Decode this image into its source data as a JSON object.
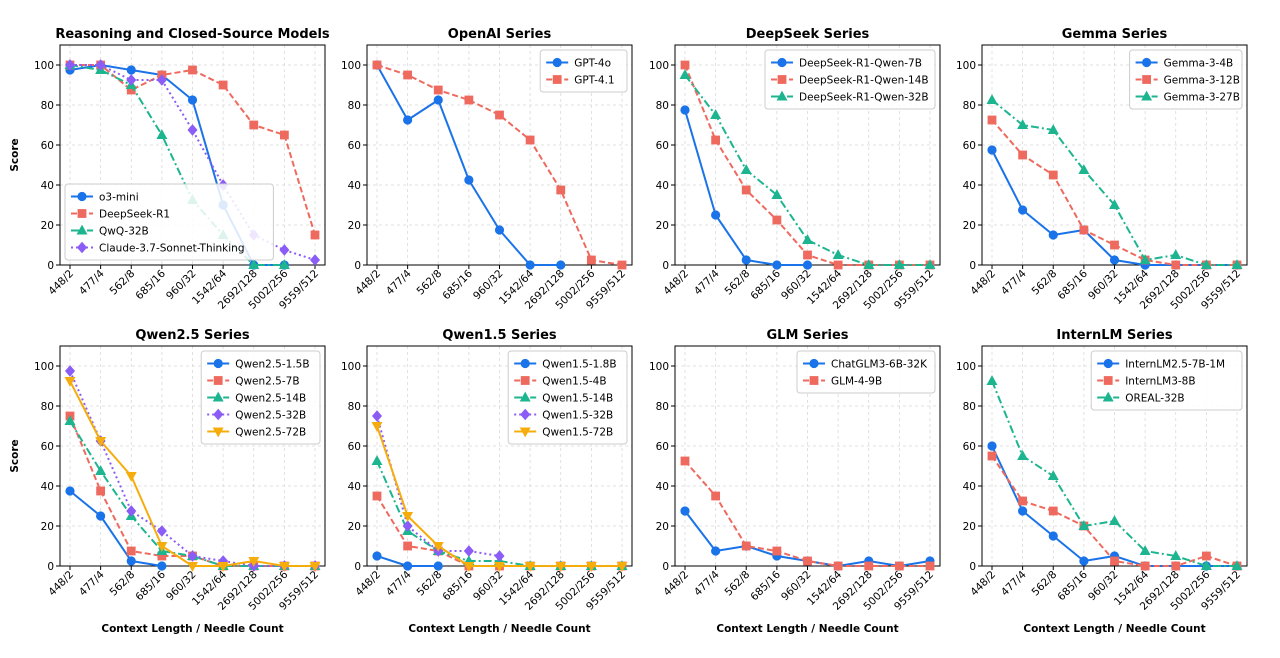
{
  "colors": {
    "blue": "#1a73e8",
    "red": "#ef6a5e",
    "green": "#1db58f",
    "purple": "#8b5cf6",
    "orange": "#f5ad0c",
    "grid": "#d9d9d9"
  },
  "chart_data": [
    {
      "type": "line",
      "title": "Reasoning and Closed-Source Models",
      "ylabel": "Score",
      "xlabel": "",
      "ylim": [
        0,
        110
      ],
      "yticks": [
        0,
        20,
        40,
        60,
        80,
        100
      ],
      "categories": [
        "448/2",
        "477/4",
        "562/8",
        "685/16",
        "960/32",
        "1542/64",
        "2692/128",
        "5002/256",
        "9559/512"
      ],
      "legend_loc": "lower-left",
      "series": [
        {
          "name": "o3-mini",
          "color": "blue",
          "marker": "circle",
          "dash": "solid",
          "values": [
            97.5,
            100,
            97.5,
            95,
            82.5,
            30,
            0,
            0,
            null
          ]
        },
        {
          "name": "DeepSeek-R1",
          "color": "red",
          "marker": "square",
          "dash": "dashed",
          "values": [
            100,
            100,
            87.5,
            95,
            97.5,
            90,
            70,
            65,
            15
          ]
        },
        {
          "name": "QwQ-32B",
          "color": "green",
          "marker": "triangle",
          "dash": "dashdot",
          "values": [
            100,
            97.5,
            90,
            65,
            32.5,
            15,
            0,
            0,
            null
          ]
        },
        {
          "name": "Claude-3.7-Sonnet-Thinking",
          "color": "purple",
          "marker": "diamond",
          "dash": "dotted",
          "values": [
            100,
            100,
            92.5,
            92.5,
            67.5,
            40,
            15,
            7.5,
            2.5
          ]
        }
      ]
    },
    {
      "type": "line",
      "title": "OpenAI Series",
      "ylabel": "",
      "xlabel": "",
      "ylim": [
        0,
        110
      ],
      "yticks": [
        0,
        20,
        40,
        60,
        80,
        100
      ],
      "categories": [
        "448/2",
        "477/4",
        "562/8",
        "685/16",
        "960/32",
        "1542/64",
        "2692/128",
        "5002/256",
        "9559/512"
      ],
      "legend_loc": "upper-right",
      "series": [
        {
          "name": "GPT-4o",
          "color": "blue",
          "marker": "circle",
          "dash": "solid",
          "values": [
            100,
            72.5,
            82.5,
            42.5,
            17.5,
            0,
            0,
            null,
            null
          ]
        },
        {
          "name": "GPT-4.1",
          "color": "red",
          "marker": "square",
          "dash": "dashed",
          "values": [
            100,
            95,
            87.5,
            82.5,
            75,
            62.5,
            37.5,
            2.5,
            0
          ]
        }
      ]
    },
    {
      "type": "line",
      "title": "DeepSeek Series",
      "ylabel": "",
      "xlabel": "",
      "ylim": [
        0,
        110
      ],
      "yticks": [
        0,
        20,
        40,
        60,
        80,
        100
      ],
      "categories": [
        "448/2",
        "477/4",
        "562/8",
        "685/16",
        "960/32",
        "1542/64",
        "2692/128",
        "5002/256",
        "9559/512"
      ],
      "legend_loc": "upper-right",
      "series": [
        {
          "name": "DeepSeek-R1-Qwen-7B",
          "color": "blue",
          "marker": "circle",
          "dash": "solid",
          "values": [
            77.5,
            25,
            2.5,
            0,
            0,
            null,
            null,
            null,
            null
          ]
        },
        {
          "name": "DeepSeek-R1-Qwen-14B",
          "color": "red",
          "marker": "square",
          "dash": "dashed",
          "values": [
            100,
            62.5,
            37.5,
            22.5,
            5,
            0,
            0,
            0,
            0
          ]
        },
        {
          "name": "DeepSeek-R1-Qwen-32B",
          "color": "green",
          "marker": "triangle",
          "dash": "dashdot",
          "values": [
            95,
            75,
            47.5,
            35,
            12.5,
            5,
            0,
            0,
            0
          ]
        }
      ]
    },
    {
      "type": "line",
      "title": "Gemma Series",
      "ylabel": "",
      "xlabel": "",
      "ylim": [
        0,
        110
      ],
      "yticks": [
        0,
        20,
        40,
        60,
        80,
        100
      ],
      "categories": [
        "448/2",
        "477/4",
        "562/8",
        "685/16",
        "960/32",
        "1542/64",
        "2692/128",
        "5002/256",
        "9559/512"
      ],
      "legend_loc": "upper-right",
      "series": [
        {
          "name": "Gemma-3-4B",
          "color": "blue",
          "marker": "circle",
          "dash": "solid",
          "values": [
            57.5,
            27.5,
            15,
            17.5,
            2.5,
            0,
            0,
            0,
            0
          ]
        },
        {
          "name": "Gemma-3-12B",
          "color": "red",
          "marker": "square",
          "dash": "dashed",
          "values": [
            72.5,
            55,
            45,
            17.5,
            10,
            2.5,
            0,
            0,
            0
          ]
        },
        {
          "name": "Gemma-3-27B",
          "color": "green",
          "marker": "triangle",
          "dash": "dashdot",
          "values": [
            82.5,
            70,
            67.5,
            47.5,
            30,
            2.5,
            5,
            0,
            0
          ]
        }
      ]
    },
    {
      "type": "line",
      "title": "Qwen2.5 Series",
      "ylabel": "Score",
      "xlabel": "Context Length / Needle Count",
      "ylim": [
        0,
        110
      ],
      "yticks": [
        0,
        20,
        40,
        60,
        80,
        100
      ],
      "categories": [
        "448/2",
        "477/4",
        "562/8",
        "685/16",
        "960/32",
        "1542/64",
        "2692/128",
        "5002/256",
        "9559/512"
      ],
      "legend_loc": "upper-right",
      "series": [
        {
          "name": "Qwen2.5-1.5B",
          "color": "blue",
          "marker": "circle",
          "dash": "solid",
          "values": [
            37.5,
            25,
            2.5,
            0,
            null,
            null,
            null,
            null,
            null
          ]
        },
        {
          "name": "Qwen2.5-7B",
          "color": "red",
          "marker": "square",
          "dash": "dashed",
          "values": [
            75,
            37.5,
            7.5,
            5,
            5,
            0,
            0,
            0,
            0
          ]
        },
        {
          "name": "Qwen2.5-14B",
          "color": "green",
          "marker": "triangle",
          "dash": "dashdot",
          "values": [
            72.5,
            47.5,
            25,
            7.5,
            5,
            0,
            0,
            0,
            0
          ]
        },
        {
          "name": "Qwen2.5-32B",
          "color": "purple",
          "marker": "diamond",
          "dash": "dotted",
          "values": [
            97.5,
            62.5,
            27.5,
            17.5,
            5,
            2.5,
            0,
            0,
            0
          ]
        },
        {
          "name": "Qwen2.5-72B",
          "color": "orange",
          "marker": "triangle-down",
          "dash": "solid",
          "values": [
            92.5,
            62.5,
            45,
            10,
            0,
            0,
            2.5,
            0,
            0
          ]
        }
      ]
    },
    {
      "type": "line",
      "title": "Qwen1.5 Series",
      "ylabel": "",
      "xlabel": "Context Length / Needle Count",
      "ylim": [
        0,
        110
      ],
      "yticks": [
        0,
        20,
        40,
        60,
        80,
        100
      ],
      "categories": [
        "448/2",
        "477/4",
        "562/8",
        "685/16",
        "960/32",
        "1542/64",
        "2692/128",
        "5002/256",
        "9559/512"
      ],
      "legend_loc": "upper-right",
      "series": [
        {
          "name": "Qwen1.5-1.8B",
          "color": "blue",
          "marker": "circle",
          "dash": "solid",
          "values": [
            5,
            0,
            0,
            null,
            null,
            null,
            null,
            null,
            null
          ]
        },
        {
          "name": "Qwen1.5-4B",
          "color": "red",
          "marker": "square",
          "dash": "dashed",
          "values": [
            35,
            10,
            7.5,
            0,
            0,
            0,
            0,
            0,
            0
          ]
        },
        {
          "name": "Qwen1.5-14B",
          "color": "green",
          "marker": "triangle",
          "dash": "dashdot",
          "values": [
            52.5,
            17.5,
            7.5,
            2.5,
            2.5,
            0,
            0,
            0,
            0
          ]
        },
        {
          "name": "Qwen1.5-32B",
          "color": "purple",
          "marker": "diamond",
          "dash": "dotted",
          "values": [
            75,
            20,
            7.5,
            7.5,
            5,
            null,
            null,
            null,
            null
          ]
        },
        {
          "name": "Qwen1.5-72B",
          "color": "orange",
          "marker": "triangle-down",
          "dash": "solid",
          "values": [
            70,
            25,
            10,
            0,
            0,
            0,
            0,
            0,
            0
          ]
        }
      ]
    },
    {
      "type": "line",
      "title": "GLM Series",
      "ylabel": "",
      "xlabel": "Context Length / Needle Count",
      "ylim": [
        0,
        110
      ],
      "yticks": [
        0,
        20,
        40,
        60,
        80,
        100
      ],
      "categories": [
        "448/2",
        "477/4",
        "562/8",
        "685/16",
        "960/32",
        "1542/64",
        "2692/128",
        "5002/256",
        "9559/512"
      ],
      "legend_loc": "upper-right",
      "series": [
        {
          "name": "ChatGLM3-6B-32K",
          "color": "blue",
          "marker": "circle",
          "dash": "solid",
          "values": [
            27.5,
            7.5,
            10,
            5,
            2.5,
            0,
            2.5,
            0,
            2.5
          ]
        },
        {
          "name": "GLM-4-9B",
          "color": "red",
          "marker": "square",
          "dash": "dashed",
          "values": [
            52.5,
            35,
            10,
            7.5,
            2.5,
            0,
            0,
            0,
            0
          ]
        }
      ]
    },
    {
      "type": "line",
      "title": "InternLM Series",
      "ylabel": "",
      "xlabel": "Context Length / Needle Count",
      "ylim": [
        0,
        110
      ],
      "yticks": [
        0,
        20,
        40,
        60,
        80,
        100
      ],
      "categories": [
        "448/2",
        "477/4",
        "562/8",
        "685/16",
        "960/32",
        "1542/64",
        "2692/128",
        "5002/256",
        "9559/512"
      ],
      "legend_loc": "upper-right",
      "series": [
        {
          "name": "InternLM2.5-7B-1M",
          "color": "blue",
          "marker": "circle",
          "dash": "solid",
          "values": [
            60,
            27.5,
            15,
            2.5,
            5,
            0,
            0,
            0,
            0
          ]
        },
        {
          "name": "InternLM3-8B",
          "color": "red",
          "marker": "square",
          "dash": "dashed",
          "values": [
            55,
            32.5,
            27.5,
            20,
            2.5,
            0,
            0,
            5,
            0
          ]
        },
        {
          "name": "OREAL-32B",
          "color": "green",
          "marker": "triangle",
          "dash": "dashdot",
          "values": [
            92.5,
            55,
            45,
            20,
            22.5,
            7.5,
            5,
            0,
            0
          ]
        }
      ]
    }
  ]
}
